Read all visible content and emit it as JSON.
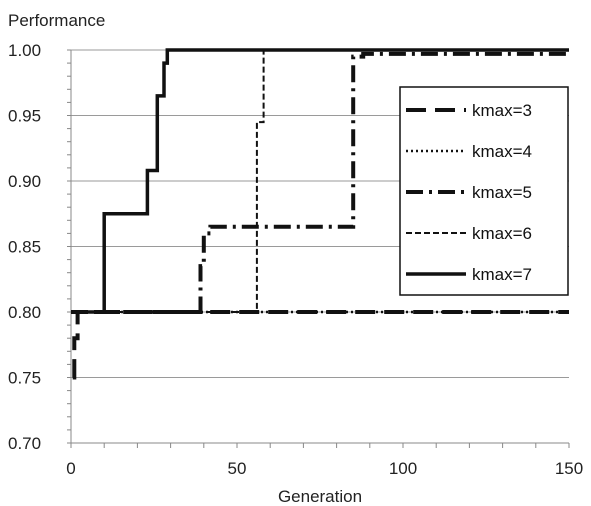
{
  "chart_data": {
    "type": "line",
    "title": "",
    "xlabel": "Generation",
    "ylabel": "Performance",
    "xlim": [
      0,
      150
    ],
    "ylim": [
      0.7,
      1.0
    ],
    "xticks": [
      0,
      50,
      100,
      150
    ],
    "xtick_labels": [
      "0",
      "50",
      "100",
      "150"
    ],
    "yticks": [
      0.7,
      0.75,
      0.8,
      0.85,
      0.9,
      0.95,
      1.0
    ],
    "ytick_labels": [
      "0.70",
      "0.75",
      "0.80",
      "0.85",
      "0.90",
      "0.95",
      "1.00"
    ],
    "grid": "horizontal",
    "legend_position": "right",
    "series": [
      {
        "name": "kmax=3",
        "style": "long-dash",
        "points": [
          [
            0.5,
            0.75
          ],
          [
            1,
            0.75
          ],
          [
            1,
            0.78
          ],
          [
            2,
            0.78
          ],
          [
            2,
            0.8
          ],
          [
            150,
            0.8
          ]
        ]
      },
      {
        "name": "kmax=4",
        "style": "dotted",
        "points": [
          [
            0,
            0.8
          ],
          [
            150,
            0.8
          ]
        ]
      },
      {
        "name": "kmax=5",
        "style": "dash-dot",
        "points": [
          [
            0,
            0.8
          ],
          [
            39,
            0.8
          ],
          [
            39,
            0.835
          ],
          [
            40,
            0.835
          ],
          [
            40,
            0.86
          ],
          [
            42,
            0.86
          ],
          [
            42,
            0.865
          ],
          [
            85,
            0.865
          ],
          [
            85,
            0.995
          ],
          [
            88,
            0.995
          ],
          [
            88,
            0.997
          ],
          [
            150,
            0.997
          ]
        ]
      },
      {
        "name": "kmax=6",
        "style": "short-dash",
        "points": [
          [
            0,
            0.8
          ],
          [
            56,
            0.8
          ],
          [
            56,
            0.945
          ],
          [
            58,
            0.945
          ],
          [
            58,
            1.0
          ],
          [
            150,
            1.0
          ]
        ]
      },
      {
        "name": "kmax=7",
        "style": "solid",
        "points": [
          [
            0,
            0.8
          ],
          [
            10,
            0.8
          ],
          [
            10,
            0.875
          ],
          [
            23,
            0.875
          ],
          [
            23,
            0.908
          ],
          [
            26,
            0.908
          ],
          [
            26,
            0.965
          ],
          [
            28,
            0.965
          ],
          [
            28,
            0.99
          ],
          [
            29,
            0.99
          ],
          [
            29,
            1.0
          ],
          [
            150,
            1.0
          ]
        ]
      }
    ]
  }
}
